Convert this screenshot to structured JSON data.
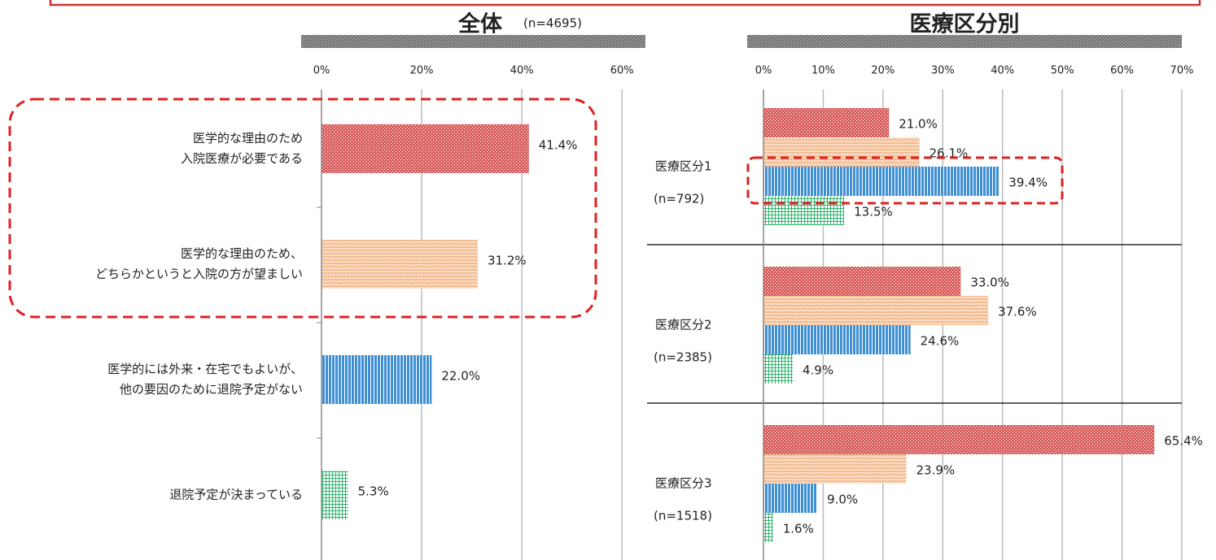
{
  "chart_data": [
    {
      "type": "bar",
      "orientation": "horizontal",
      "title": "全体",
      "subtitle": "(n=4695)",
      "categories": [
        [
          "医学的な理由のため",
          "入院医療が必要である"
        ],
        [
          "医学的な理由のため、",
          "どちらかというと入院の方が望ましい"
        ],
        [
          "医学的には外来・在宅でもよいが、",
          "他の要因のために退院予定がない"
        ],
        [
          "退院予定が決まっている"
        ]
      ],
      "values": [
        41.4,
        31.2,
        22.0,
        5.3
      ],
      "value_labels": [
        "41.4%",
        "31.2%",
        "22.0%",
        "5.3%"
      ],
      "colors": [
        "#d9605f",
        "#f4b88a",
        "#3f8fd2",
        "#2fb36b"
      ],
      "xlim": [
        0,
        65
      ],
      "xticks": [
        {
          "value": 0,
          "label": "0%"
        },
        {
          "value": 20,
          "label": "20%"
        },
        {
          "value": 40,
          "label": "40%"
        },
        {
          "value": 60,
          "label": "60%"
        }
      ],
      "grid": true
    },
    {
      "type": "grouped_bar",
      "orientation": "horizontal",
      "title": "医療区分別",
      "categories": [
        "医療区分1",
        "医療区分2",
        "医療区分3"
      ],
      "category_notes": [
        "(n=792)",
        "(n=2385)",
        "(n=1518)"
      ],
      "series": [
        {
          "color": "#d9605f",
          "values": [
            21.0,
            33.0,
            65.4
          ],
          "value_labels": [
            "21.0%",
            "33.0%",
            "65.4%"
          ]
        },
        {
          "color": "#f4b88a",
          "values": [
            26.1,
            37.6,
            23.9
          ],
          "value_labels": [
            "26.1%",
            "37.6%",
            "23.9%"
          ]
        },
        {
          "color": "#3f8fd2",
          "values": [
            39.4,
            24.6,
            9.0
          ],
          "value_labels": [
            "39.4%",
            "24.6%",
            "9.0%"
          ]
        },
        {
          "color": "#2fb36b",
          "values": [
            13.5,
            4.9,
            1.6
          ],
          "value_labels": [
            "13.5%",
            "4.9%",
            "1.6%"
          ]
        }
      ],
      "xlim": [
        0,
        70
      ],
      "xticks": [
        {
          "value": 0,
          "label": "0%"
        },
        {
          "value": 10,
          "label": "10%"
        },
        {
          "value": 20,
          "label": "20%"
        },
        {
          "value": 30,
          "label": "30%"
        },
        {
          "value": 40,
          "label": "40%"
        },
        {
          "value": 50,
          "label": "50%"
        },
        {
          "value": 60,
          "label": "60%"
        },
        {
          "value": 70,
          "label": "70%"
        }
      ],
      "grid": true
    }
  ]
}
